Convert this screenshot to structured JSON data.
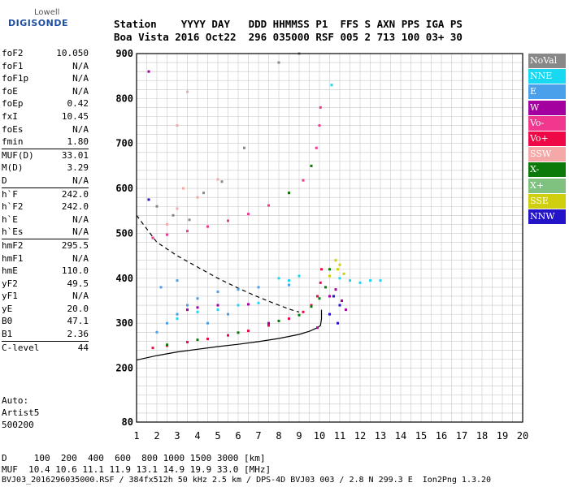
{
  "logo": {
    "line1": "Lowell",
    "line2": "DIGISONDE"
  },
  "header": {
    "line1": "Station    YYYY DAY   DDD HHMMSS P1  FFS S AXN PPS IGA PS",
    "line2": "Boa Vista 2016 Oct22  296 035000 RSF 005 2 713 100 03+ 30"
  },
  "params": [
    {
      "group": [
        {
          "k": "foF2",
          "v": "10.050"
        },
        {
          "k": "foF1",
          "v": "N/A"
        },
        {
          "k": "foF1p",
          "v": "N/A"
        },
        {
          "k": "foE",
          "v": "N/A"
        },
        {
          "k": "foEp",
          "v": "0.42"
        },
        {
          "k": "fxI",
          "v": "10.45"
        },
        {
          "k": "foEs",
          "v": "N/A"
        },
        {
          "k": "fmin",
          "v": "1.80"
        }
      ]
    },
    {
      "group": [
        {
          "k": "MUF(D)",
          "v": "33.01"
        },
        {
          "k": "M(D)",
          "v": "3.29"
        },
        {
          "k": "D",
          "v": "N/A"
        }
      ]
    },
    {
      "group": [
        {
          "k": "h`F",
          "v": "242.0"
        },
        {
          "k": "h`F2",
          "v": "242.0"
        },
        {
          "k": "h`E",
          "v": "N/A"
        },
        {
          "k": "h`Es",
          "v": "N/A"
        }
      ]
    },
    {
      "group": [
        {
          "k": "hmF2",
          "v": "295.5"
        },
        {
          "k": "hmF1",
          "v": "N/A"
        },
        {
          "k": "hmE",
          "v": "110.0"
        },
        {
          "k": "yF2",
          "v": "49.5"
        },
        {
          "k": "yF1",
          "v": "N/A"
        },
        {
          "k": "yE",
          "v": "20.0"
        },
        {
          "k": "B0",
          "v": "47.1"
        },
        {
          "k": "B1",
          "v": "2.36"
        }
      ]
    },
    {
      "group": [
        {
          "k": "C-level",
          "v": "44"
        }
      ]
    }
  ],
  "auto": {
    "line1": "Auto:",
    "line2": "Artist5",
    "line3": "500200"
  },
  "legend": [
    {
      "label": "NoVal",
      "color": "#888888"
    },
    {
      "label": "NNE",
      "color": "#19d8f2"
    },
    {
      "label": "E",
      "color": "#4aa0ea"
    },
    {
      "label": "W",
      "color": "#a3009f"
    },
    {
      "label": "Vo-",
      "color": "#f0388e"
    },
    {
      "label": "Vo+",
      "color": "#ee0845"
    },
    {
      "label": "SSW",
      "color": "#f4a8a8"
    },
    {
      "label": "X-",
      "color": "#0b7a0b"
    },
    {
      "label": "X+",
      "color": "#7fc17f"
    },
    {
      "label": "SSE",
      "color": "#cfcf10"
    },
    {
      "label": "NNW",
      "color": "#2414c8"
    }
  ],
  "footer": {
    "d_line": "D     100  200  400  600  800 1000 1500 3000 [km]",
    "muf_line": "MUF  10.4 10.6 11.1 11.9 13.1 14.9 19.9 33.0 [MHz]",
    "file_line": "BVJ03_2016296035000.RSF / 384fx512h 50 kHz 2.5 km / DPS-4D BVJ03 003 / 2.8 N 299.3 E  Ion2Png 1.3.20"
  },
  "chart_data": {
    "type": "scatter",
    "title": "",
    "xlabel": "",
    "ylabel": "",
    "xlim": [
      1,
      20
    ],
    "ylim": [
      80,
      900
    ],
    "x_ticks": [
      1,
      2,
      3,
      4,
      5,
      6,
      7,
      8,
      9,
      10,
      11,
      12,
      13,
      14,
      15,
      16,
      17,
      18,
      19,
      20
    ],
    "y_ticks": [
      80,
      200,
      300,
      400,
      500,
      600,
      700,
      800,
      900
    ],
    "grid": true,
    "legend_position": "right",
    "series": [
      {
        "color": "#ee0845",
        "points": [
          [
            1.8,
            245
          ],
          [
            2.5,
            250
          ],
          [
            3.5,
            258
          ],
          [
            4.5,
            265
          ],
          [
            5.5,
            273
          ],
          [
            6.5,
            283
          ],
          [
            7.5,
            295
          ],
          [
            8.5,
            310
          ],
          [
            9.2,
            325
          ],
          [
            9.6,
            340
          ],
          [
            9.9,
            360
          ],
          [
            10.05,
            390
          ],
          [
            10.1,
            420
          ]
        ]
      },
      {
        "color": "#f0388e",
        "points": [
          [
            1.8,
            490
          ],
          [
            2.5,
            497
          ],
          [
            3.5,
            505
          ],
          [
            4.5,
            515
          ],
          [
            5.5,
            528
          ],
          [
            6.5,
            543
          ],
          [
            7.5,
            562
          ],
          [
            8.5,
            590
          ],
          [
            9.2,
            618
          ],
          [
            9.6,
            650
          ],
          [
            9.85,
            690
          ],
          [
            10.0,
            740
          ],
          [
            10.05,
            780
          ]
        ]
      },
      {
        "color": "#0b7a0b",
        "points": [
          [
            2.5,
            252
          ],
          [
            4.0,
            263
          ],
          [
            6.0,
            279
          ],
          [
            8.0,
            305
          ],
          [
            9.0,
            318
          ],
          [
            9.6,
            337
          ],
          [
            10.0,
            355
          ],
          [
            10.3,
            380
          ],
          [
            10.5,
            420
          ],
          [
            8.5,
            590
          ],
          [
            9.6,
            650
          ]
        ]
      },
      {
        "color": "#4aa0ea",
        "points": [
          [
            2.0,
            280
          ],
          [
            2.5,
            300
          ],
          [
            3.0,
            320
          ],
          [
            3.5,
            340
          ],
          [
            4.0,
            355
          ],
          [
            5.0,
            370
          ],
          [
            6.0,
            375
          ],
          [
            7.0,
            380
          ],
          [
            8.5,
            385
          ],
          [
            2.2,
            380
          ],
          [
            3.0,
            395
          ],
          [
            4.5,
            300
          ],
          [
            5.5,
            320
          ]
        ]
      },
      {
        "color": "#19d8f2",
        "points": [
          [
            3.0,
            310
          ],
          [
            4.0,
            325
          ],
          [
            5.0,
            330
          ],
          [
            6.0,
            340
          ],
          [
            7.0,
            345
          ],
          [
            8.0,
            400
          ],
          [
            8.5,
            395
          ],
          [
            9.0,
            405
          ],
          [
            11.0,
            400
          ],
          [
            11.5,
            395
          ],
          [
            12.0,
            390
          ],
          [
            12.5,
            395
          ],
          [
            13.0,
            395
          ],
          [
            10.6,
            830
          ]
        ]
      },
      {
        "color": "#a3009f",
        "points": [
          [
            1.6,
            860
          ],
          [
            3.5,
            330
          ],
          [
            4.0,
            335
          ],
          [
            5.0,
            340
          ],
          [
            6.5,
            342
          ],
          [
            7.5,
            300
          ],
          [
            9.9,
            290
          ],
          [
            10.5,
            360
          ],
          [
            10.8,
            375
          ],
          [
            11.3,
            330
          ],
          [
            11.1,
            350
          ]
        ]
      },
      {
        "color": "#2414c8",
        "points": [
          [
            1.6,
            575
          ],
          [
            10.5,
            320
          ],
          [
            10.7,
            360
          ],
          [
            11.0,
            340
          ],
          [
            10.9,
            300
          ]
        ]
      },
      {
        "color": "#cfcf10",
        "points": [
          [
            10.9,
            420
          ],
          [
            11.0,
            430
          ],
          [
            10.8,
            440
          ],
          [
            11.2,
            410
          ],
          [
            10.5,
            405
          ]
        ]
      },
      {
        "color": "#f4a8a8",
        "points": [
          [
            2.5,
            520
          ],
          [
            3.0,
            555
          ],
          [
            3.3,
            600
          ],
          [
            4.0,
            580
          ],
          [
            5.0,
            620
          ],
          [
            3.0,
            740
          ],
          [
            3.5,
            815
          ]
        ]
      },
      {
        "color": "#888888",
        "points": [
          [
            2.0,
            560
          ],
          [
            2.8,
            540
          ],
          [
            3.6,
            530
          ],
          [
            4.3,
            590
          ],
          [
            5.2,
            615
          ],
          [
            6.3,
            690
          ],
          [
            8.0,
            880
          ],
          [
            9.0,
            900
          ]
        ]
      }
    ],
    "profile_curve": [
      [
        1.0,
        218
      ],
      [
        2.0,
        228
      ],
      [
        3.0,
        236
      ],
      [
        4.0,
        242
      ],
      [
        5.0,
        248
      ],
      [
        6.0,
        253
      ],
      [
        7.0,
        259
      ],
      [
        8.0,
        266
      ],
      [
        9.0,
        275
      ],
      [
        9.5,
        282
      ],
      [
        9.9,
        290
      ],
      [
        10.05,
        295
      ],
      [
        10.1,
        310
      ],
      [
        10.1,
        330
      ]
    ],
    "dashed_curve": [
      [
        1.0,
        540
      ],
      [
        1.5,
        510
      ],
      [
        2.0,
        480
      ],
      [
        3.0,
        450
      ],
      [
        4.0,
        425
      ],
      [
        5.0,
        400
      ],
      [
        6.0,
        378
      ],
      [
        7.0,
        358
      ],
      [
        8.0,
        340
      ],
      [
        8.6,
        330
      ],
      [
        9.0,
        325
      ]
    ]
  }
}
